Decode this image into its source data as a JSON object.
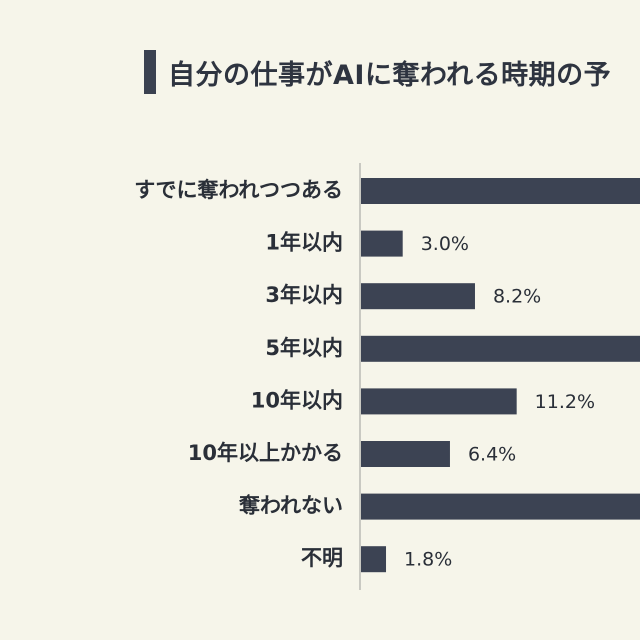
{
  "title": "自分の仕事がAIに奪われる時期の予",
  "chart_data": {
    "type": "bar",
    "orientation": "horizontal",
    "categories": [
      "すでに奪われつつある",
      "1年以内",
      "3年以内",
      "5年以内",
      "10年以内",
      "10年以上かかる",
      "奪われない",
      "不明"
    ],
    "values": [
      null,
      3.0,
      8.2,
      null,
      11.2,
      6.4,
      null,
      1.8
    ],
    "value_labels": [
      "",
      "3.0%",
      "8.2%",
      "",
      "11.2%",
      "6.4%",
      "",
      "1.8%"
    ],
    "note": "bars for すでに奪われつつある and 奪われない extend beyond the visible right edge; 5年以内 value label is cropped",
    "xlim": [
      0,
      24
    ],
    "bar_color": "#3c4353",
    "axis_color": "#c9c9c2"
  }
}
